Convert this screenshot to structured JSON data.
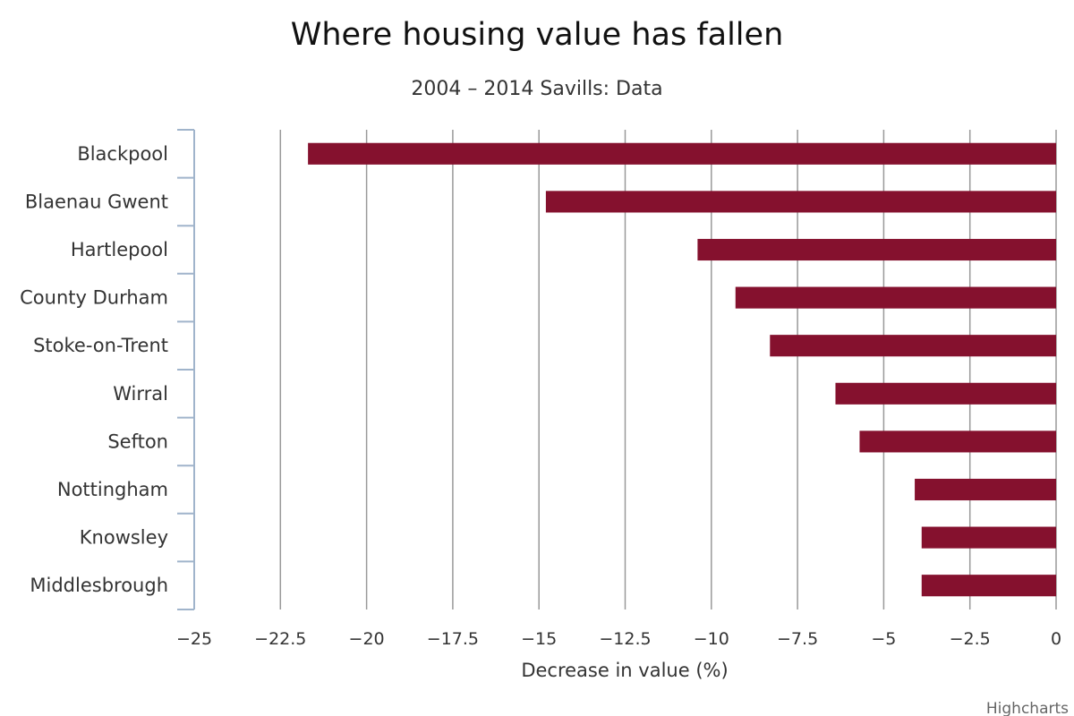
{
  "chart_data": {
    "type": "bar",
    "orientation": "horizontal",
    "title": "Where housing value has fallen",
    "subtitle": "2004 – 2014 Savills: Data",
    "xlabel": "Decrease in value (%)",
    "ylabel": "",
    "categories": [
      "Blackpool",
      "Blaenau Gwent",
      "Hartlepool",
      "County Durham",
      "Stoke-on-Trent",
      "Wirral",
      "Sefton",
      "Nottingham",
      "Knowsley",
      "Middlesbrough"
    ],
    "values": [
      -21.7,
      -14.8,
      -10.4,
      -9.3,
      -8.3,
      -6.4,
      -5.7,
      -4.1,
      -3.9,
      -3.9
    ],
    "xlim": [
      -25,
      0
    ],
    "ticks": [
      -25,
      -22.5,
      -20,
      -17.5,
      -15,
      -12.5,
      -10,
      -7.5,
      -5,
      -2.5,
      0
    ],
    "tick_labels": [
      "−25",
      "−22.5",
      "−20",
      "−17.5",
      "−15",
      "−12.5",
      "−10",
      "−7.5",
      "−5",
      "−2.5",
      "0"
    ],
    "grid": true,
    "legend": "none",
    "bar_color": "#85112e",
    "grid_color": "#999999",
    "axis_color": "#a0b4cb"
  },
  "credits": "Highcharts"
}
